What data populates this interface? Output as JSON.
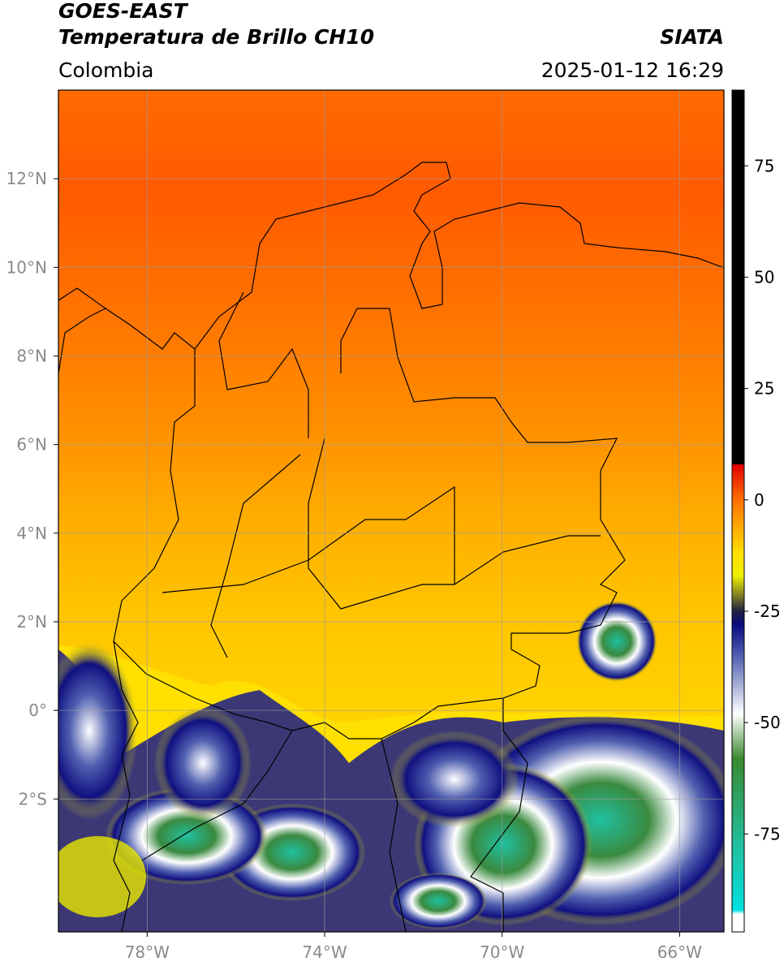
{
  "chart_data": {
    "type": "map",
    "title": "GOES-EAST",
    "subtitle": "Temperatura de Brillo CH10",
    "region": "Colombia",
    "source": "SIATA",
    "datetime": "2025-01-12 16:29",
    "xlim": [
      -80,
      -65
    ],
    "ylim": [
      -5,
      14
    ],
    "xticks": [
      {
        "value": -78,
        "label": "78°W"
      },
      {
        "value": -74,
        "label": "74°W"
      },
      {
        "value": -70,
        "label": "70°W"
      },
      {
        "value": -66,
        "label": "66°W"
      }
    ],
    "yticks": [
      {
        "value": -2,
        "label": "2°S"
      },
      {
        "value": 0,
        "label": "0°"
      },
      {
        "value": 2,
        "label": "2°N"
      },
      {
        "value": 4,
        "label": "4°N"
      },
      {
        "value": 6,
        "label": "6°N"
      },
      {
        "value": 8,
        "label": "8°N"
      },
      {
        "value": 10,
        "label": "10°N"
      },
      {
        "value": 12,
        "label": "12°N"
      }
    ],
    "grid": true,
    "colorbar_lim": [
      -97,
      92
    ],
    "colorbar_ticks": [
      -75,
      -50,
      -25,
      0,
      25,
      50,
      75
    ]
  }
}
